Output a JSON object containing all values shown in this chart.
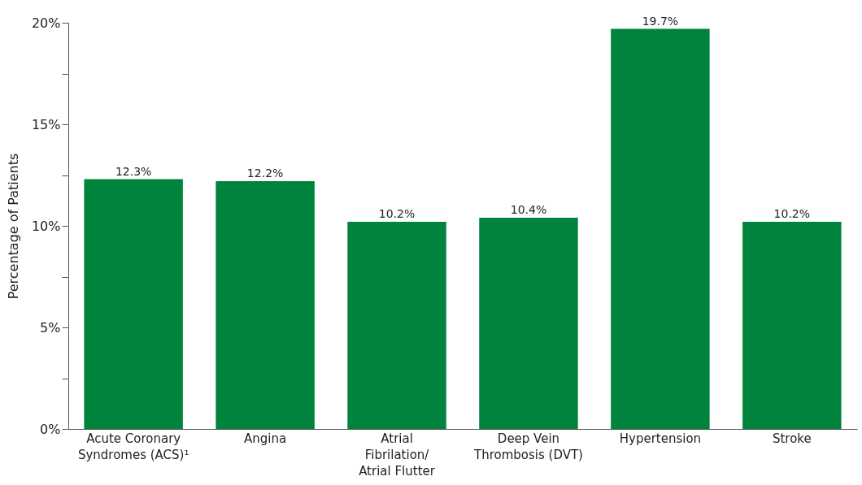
{
  "chart_data": {
    "type": "bar",
    "ylabel": "Percentage of Patients",
    "categories": [
      "Acute Coronary Syndromes (ACS)¹",
      "Angina",
      "Atrial Fibrilation/ Atrial Flutter",
      "Deep Vein Thrombosis (DVT)",
      "Hypertension",
      "Stroke"
    ],
    "values": [
      12.3,
      12.2,
      10.2,
      10.4,
      19.7,
      10.2
    ],
    "value_labels": [
      "12.3%",
      "12.2%",
      "10.2%",
      "10.4%",
      "19.7%",
      "10.2%"
    ],
    "color": "#00843d",
    "ylim": [
      0,
      20
    ],
    "yticks": [
      {
        "value": 0,
        "label": "0%"
      },
      {
        "value": 2.5,
        "label": null
      },
      {
        "value": 5,
        "label": "5%"
      },
      {
        "value": 7.5,
        "label": null
      },
      {
        "value": 10,
        "label": "10%"
      },
      {
        "value": 12.5,
        "label": null
      },
      {
        "value": 15,
        "label": "15%"
      },
      {
        "value": 17.5,
        "label": null
      },
      {
        "value": 20,
        "label": "20%"
      }
    ],
    "grid": false
  }
}
